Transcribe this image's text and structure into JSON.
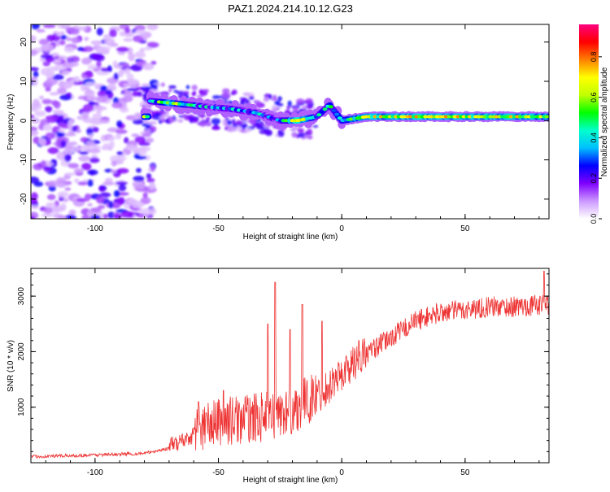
{
  "title": "PAZ1.2024.214.10.12.G23",
  "chart_data": [
    {
      "type": "heatmap",
      "xlabel": "Height of straight line (km)",
      "ylabel": "Frequency (Hz)",
      "xlim": [
        -126,
        84
      ],
      "ylim": [
        -25,
        24.5
      ],
      "xticks": [
        -100,
        -50,
        0,
        50
      ],
      "yticks": [
        -20,
        -10,
        0,
        10,
        20
      ],
      "colorbar": {
        "label": "Normalized spectral amplitude",
        "range": [
          0,
          0.96
        ],
        "ticks": [
          0.0,
          0.2,
          0.4,
          0.6,
          0.8
        ],
        "colors": [
          "#ffffff",
          "#cc99ff",
          "#8000ff",
          "#0000ff",
          "#00bfff",
          "#00ffcc",
          "#00ff00",
          "#c0ff00",
          "#ffff00",
          "#ff8000",
          "#ff0000",
          "#ff0080"
        ]
      },
      "ridge": [
        {
          "x": -78,
          "y": 5,
          "amp": 0.35
        },
        {
          "x": -70,
          "y": 4.5,
          "amp": 0.55
        },
        {
          "x": -62,
          "y": 4,
          "amp": 0.4
        },
        {
          "x": -55,
          "y": 3.5,
          "amp": 0.3
        },
        {
          "x": -45,
          "y": 3,
          "amp": 0.3
        },
        {
          "x": -35,
          "y": 2,
          "amp": 0.3
        },
        {
          "x": -25,
          "y": 0,
          "amp": 0.25
        },
        {
          "x": -18,
          "y": 0,
          "amp": 0.75
        },
        {
          "x": -10,
          "y": 1,
          "amp": 0.35
        },
        {
          "x": -5,
          "y": 4,
          "amp": 0.4
        },
        {
          "x": 0,
          "y": 0,
          "amp": 0.45
        },
        {
          "x": 10,
          "y": 1,
          "amp": 0.6
        },
        {
          "x": 30,
          "y": 1,
          "amp": 0.65
        },
        {
          "x": 50,
          "y": 1,
          "amp": 0.6
        },
        {
          "x": 70,
          "y": 1,
          "amp": 0.65
        },
        {
          "x": 84,
          "y": 1,
          "amp": 0.55
        }
      ]
    },
    {
      "type": "line",
      "xlabel": "Height of straight line (km)",
      "ylabel": "SNR (10 * v/v)",
      "xlim": [
        -126,
        84
      ],
      "ylim": [
        0,
        3500
      ],
      "xticks": [
        -100,
        -50,
        0,
        50
      ],
      "yticks": [
        1000,
        2000,
        3000
      ],
      "color": "#ee3333",
      "trend": [
        {
          "x": -126,
          "y": 100
        },
        {
          "x": -100,
          "y": 130
        },
        {
          "x": -80,
          "y": 160
        },
        {
          "x": -70,
          "y": 250
        },
        {
          "x": -60,
          "y": 450
        },
        {
          "x": -50,
          "y": 600
        },
        {
          "x": -40,
          "y": 650
        },
        {
          "x": -30,
          "y": 700
        },
        {
          "x": -20,
          "y": 800
        },
        {
          "x": -10,
          "y": 1100
        },
        {
          "x": 0,
          "y": 1500
        },
        {
          "x": 10,
          "y": 1900
        },
        {
          "x": 20,
          "y": 2200
        },
        {
          "x": 30,
          "y": 2500
        },
        {
          "x": 40,
          "y": 2650
        },
        {
          "x": 50,
          "y": 2700
        },
        {
          "x": 60,
          "y": 2750
        },
        {
          "x": 70,
          "y": 2750
        },
        {
          "x": 84,
          "y": 2800
        }
      ],
      "peaks": [
        {
          "x": -58,
          "y": 1100
        },
        {
          "x": -48,
          "y": 1300
        },
        {
          "x": -30,
          "y": 2500
        },
        {
          "x": -27,
          "y": 3250
        },
        {
          "x": -21,
          "y": 2400
        },
        {
          "x": -16,
          "y": 2850
        },
        {
          "x": -8,
          "y": 2550
        },
        {
          "x": 7,
          "y": 2200
        },
        {
          "x": 82,
          "y": 3450
        }
      ]
    }
  ]
}
